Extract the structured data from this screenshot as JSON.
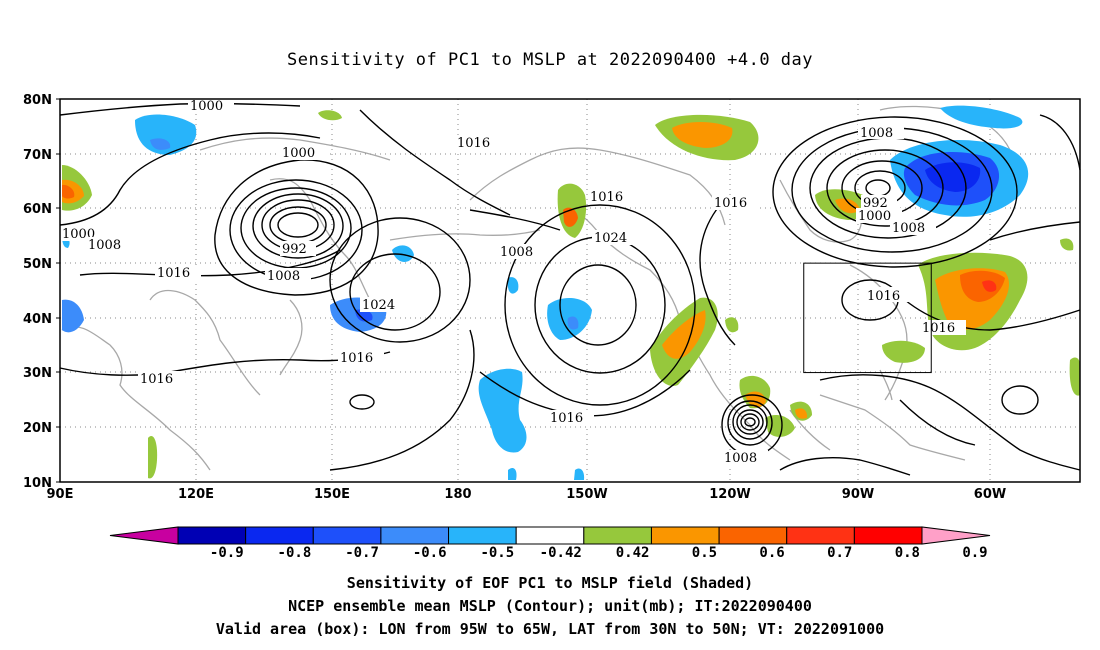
{
  "title": "Sensitivity of PC1 to MSLP at 2022090400 +4.0 day",
  "axes": {
    "lat_labels": [
      "80N",
      "70N",
      "60N",
      "50N",
      "40N",
      "30N",
      "20N",
      "10N"
    ],
    "lon_labels": [
      "90E",
      "120E",
      "150E",
      "180",
      "150W",
      "120W",
      "90W",
      "60W"
    ]
  },
  "contour_labels": [
    "1000",
    "1000",
    "1000",
    "1008",
    "992",
    "1008",
    "1016",
    "1016",
    "1024",
    "1016",
    "1008",
    "1016",
    "1024",
    "1016",
    "1016",
    "1008",
    "1008",
    "1016",
    "992",
    "1000",
    "1008",
    "1016",
    "1016",
    "1016"
  ],
  "valid_box": {
    "lon_min": -95,
    "lon_max": -65,
    "lat_min": 30,
    "lat_max": 50
  },
  "colorbar": {
    "labels": [
      "-0.9",
      "-0.8",
      "-0.7",
      "-0.6",
      "-0.5",
      "-0.42",
      "0.42",
      "0.5",
      "0.6",
      "0.7",
      "0.8",
      "0.9"
    ],
    "colors": [
      "#0000b4",
      "#0a28f0",
      "#1e50fa",
      "#3c8cfa",
      "#28b4fa",
      "#ffffff",
      "#96c83c",
      "#fa9600",
      "#fa6400",
      "#ff3214",
      "#ff0000"
    ],
    "low_end_color": "#c800a0",
    "high_end_color": "#ffa0c8"
  },
  "captions": [
    "Sensitivity of EOF PC1 to MSLP field (Shaded)",
    "NCEP ensemble mean MSLP (Contour); unit(mb); IT:2022090400",
    "Valid area (box): LON from 95W to 65W, LAT from 30N to 50N; VT: 2022091000"
  ]
}
